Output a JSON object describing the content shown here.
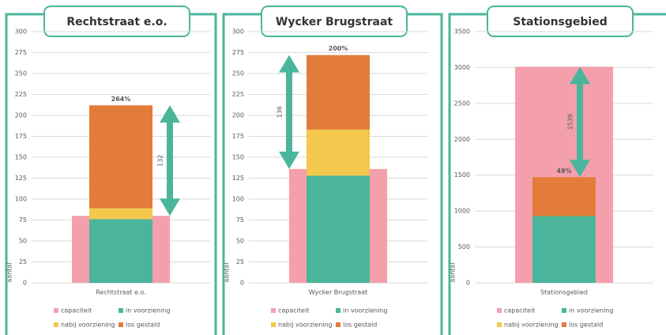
{
  "chart_data": [
    {
      "type": "bar",
      "title": "Rechtstraat e.o.",
      "categories": [
        "Rechtstraat e.o."
      ],
      "y_label": "aantal",
      "series": [
        {
          "name": "capaciteit",
          "color": "#f4a0ac",
          "values": [
            80
          ],
          "role": "background"
        },
        {
          "name": "in voorziening",
          "color": "#4bb59b",
          "values": [
            76
          ]
        },
        {
          "name": "nabij voorziening",
          "color": "#f2c94c",
          "values": [
            13
          ]
        },
        {
          "name": "los gestald",
          "color": "#e37c3b",
          "values": [
            123
          ]
        }
      ],
      "total_label": "264%",
      "difference": 132,
      "difference_side": "right",
      "ylim": [
        0,
        300
      ],
      "yticks": [
        0,
        25,
        50,
        75,
        100,
        125,
        150,
        175,
        200,
        225,
        250,
        275,
        300
      ],
      "grid": true
    },
    {
      "type": "bar",
      "title": "Wycker Brugstraat",
      "categories": [
        "Wycker Brugstraat"
      ],
      "y_label": "aantal",
      "series": [
        {
          "name": "capaciteit",
          "color": "#f4a0ac",
          "values": [
            136
          ],
          "role": "background"
        },
        {
          "name": "in voorziening",
          "color": "#4bb59b",
          "values": [
            128
          ]
        },
        {
          "name": "nabij voorziening",
          "color": "#f2c94c",
          "values": [
            55
          ]
        },
        {
          "name": "los gestald",
          "color": "#e37c3b",
          "values": [
            89
          ]
        }
      ],
      "total_label": "200%",
      "difference": 136,
      "difference_side": "left",
      "ylim": [
        0,
        300
      ],
      "yticks": [
        0,
        25,
        50,
        75,
        100,
        125,
        150,
        175,
        200,
        225,
        250,
        275,
        300
      ],
      "grid": true
    },
    {
      "type": "bar",
      "title": "Stationsgebied",
      "categories": [
        "Stationsgebied"
      ],
      "y_label": "aantal",
      "series": [
        {
          "name": "capaciteit",
          "color": "#f4a0ac",
          "values": [
            3011
          ],
          "role": "background"
        },
        {
          "name": "in voorziening",
          "color": "#4bb59b",
          "values": [
            930
          ]
        },
        {
          "name": "nabij voorziening",
          "color": "#f2c94c",
          "values": [
            0
          ]
        },
        {
          "name": "los gestald",
          "color": "#e37c3b",
          "values": [
            542
          ]
        }
      ],
      "total_label": "49%",
      "difference": 1539,
      "difference_side": "inside",
      "ylim": [
        0,
        3500
      ],
      "yticks": [
        0,
        500,
        1000,
        1500,
        2000,
        2500,
        3000,
        3500
      ],
      "grid": true
    }
  ]
}
